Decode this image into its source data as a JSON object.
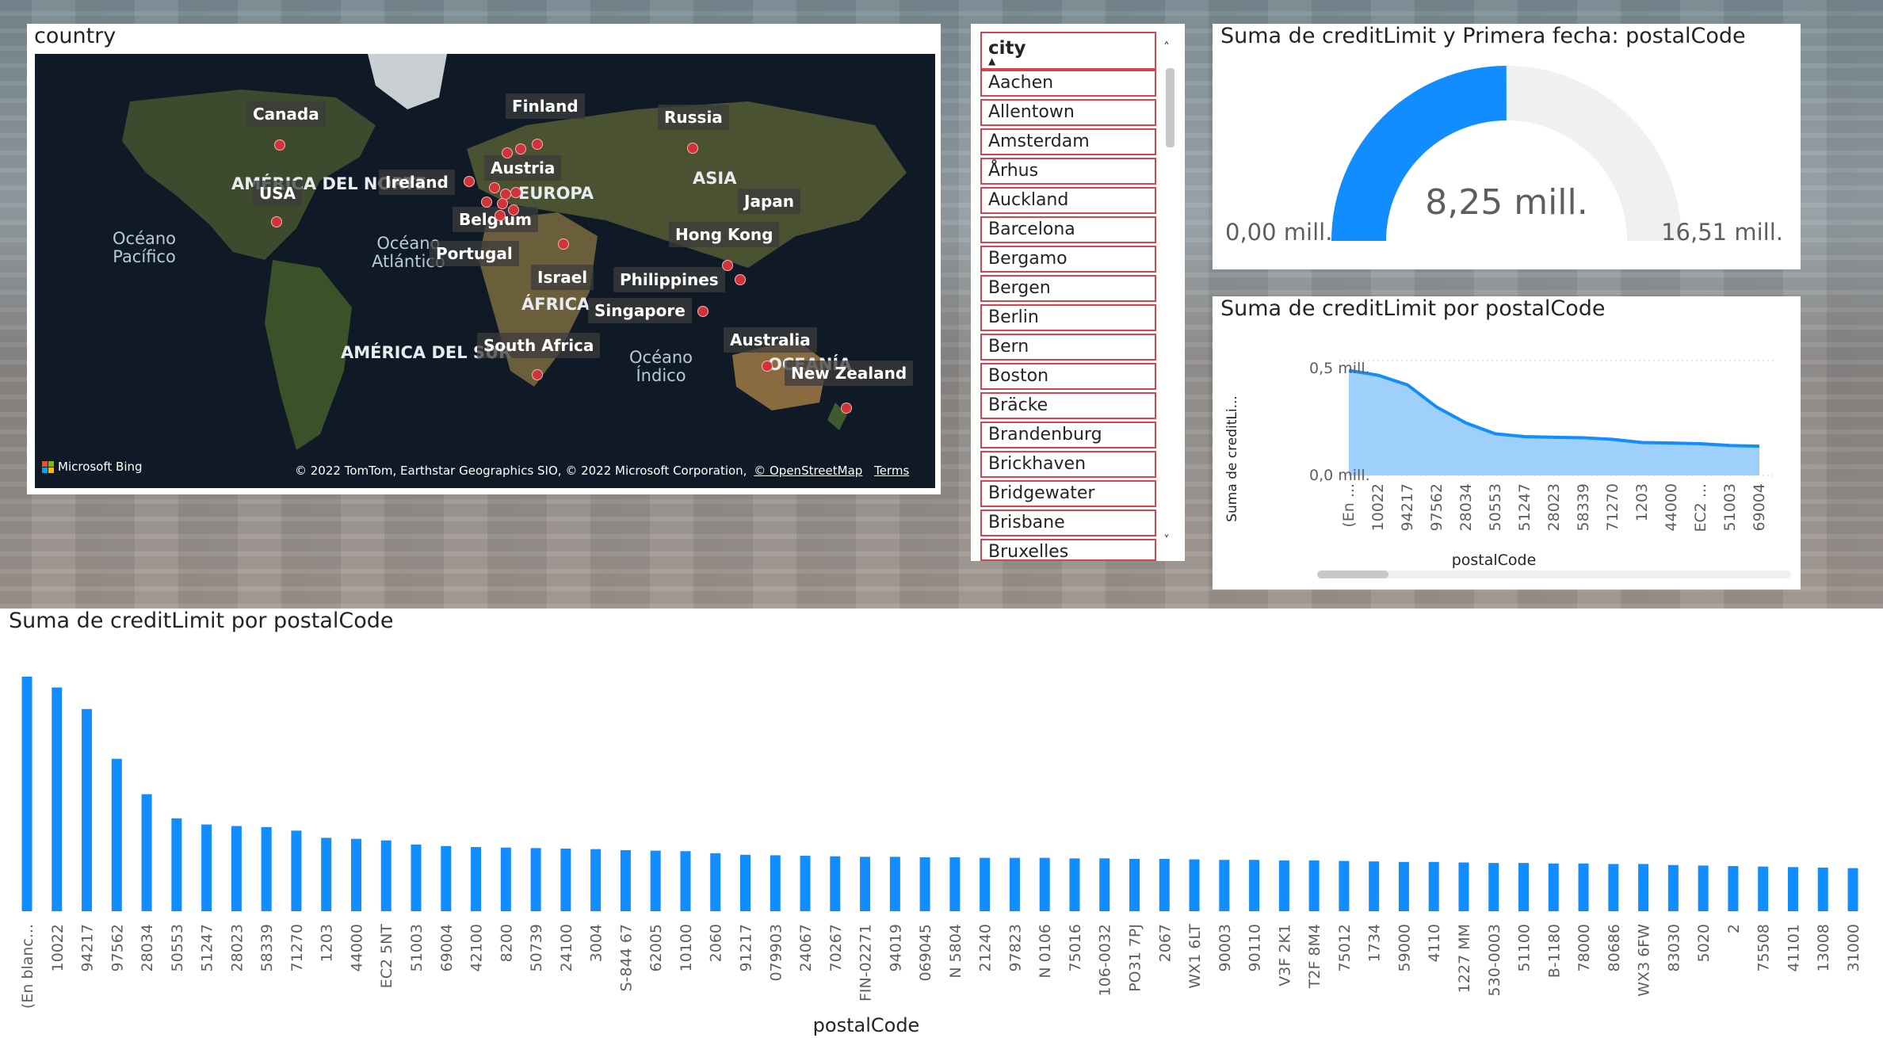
{
  "map": {
    "title": "country",
    "ocean_labels": [
      {
        "id": "pacific",
        "text": "Océano\nPacífico"
      },
      {
        "id": "atlantic",
        "text": "Océano\nAtlántico"
      },
      {
        "id": "indian",
        "text": "Océano\nÍndico"
      }
    ],
    "region_labels": [
      "AMÉRICA DEL NORTE",
      "EUROPA",
      "ASIA",
      "ÁFRICA",
      "AMÉRICA DEL SUR",
      "OCEANÍA"
    ],
    "countries": [
      "Canada",
      "USA",
      "Finland",
      "Russia",
      "Ireland",
      "Austria",
      "Belgium",
      "Portugal",
      "Japan",
      "Hong Kong",
      "Israel",
      "Philippines",
      "Singapore",
      "South Africa",
      "Australia",
      "New Zealand"
    ],
    "bing_logo": "Microsoft Bing",
    "attribution": "© 2022 TomTom, Earthstar Geographics SIO, © 2022 Microsoft Corporation,",
    "osm_link": "© OpenStreetMap",
    "terms_link": "Terms"
  },
  "slicer": {
    "header": "city",
    "items": [
      "Aachen",
      "Allentown",
      "Amsterdam",
      "Århus",
      "Auckland",
      "Barcelona",
      "Bergamo",
      "Bergen",
      "Berlin",
      "Bern",
      "Boston",
      "Bräcke",
      "Brandenburg",
      "Brickhaven",
      "Bridgewater",
      "Brisbane",
      "Bruxelles"
    ]
  },
  "gauge": {
    "title": "Suma de creditLimit y Primera fecha: postalCode",
    "value_label": "8,25 mill.",
    "min_label": "0,00 mill.",
    "max_label": "16,51 mill.",
    "value": 8.25,
    "min": 0,
    "max": 16.51,
    "colors": {
      "fill": "#118dff",
      "track": "#f0f0f0"
    }
  },
  "line_chart": {
    "title": "Suma de creditLimit por postalCode",
    "ylabel": "Suma de creditLi...",
    "xlabel": "postalCode",
    "yticks": [
      "0,5 mill.",
      "0,0 mill."
    ],
    "colors": {
      "line": "#118dff",
      "area": "#9fd0fb"
    }
  },
  "bar_chart": {
    "title": "Suma de creditLimit por postalCode",
    "xlabel": "postalCode",
    "color": "#118dff"
  },
  "chart_data": [
    {
      "type": "area",
      "title": "Suma de creditLimit por postalCode",
      "xlabel": "postalCode",
      "ylabel": "Suma de creditLi...",
      "categories": [
        "(En ...",
        "10022",
        "94217",
        "97562",
        "28034",
        "50553",
        "51247",
        "28023",
        "58339",
        "71270",
        "1203",
        "44000",
        "EC2 ...",
        "51003",
        "69004"
      ],
      "values": [
        0.457,
        0.436,
        0.394,
        0.297,
        0.228,
        0.181,
        0.169,
        0.166,
        0.164,
        0.157,
        0.143,
        0.141,
        0.138,
        0.13,
        0.127
      ],
      "ylim": [
        0,
        0.5
      ],
      "unit": "mill."
    },
    {
      "type": "bar",
      "title": "Suma de creditLimit por postalCode",
      "xlabel": "postalCode",
      "categories": [
        "(En blanc...",
        "10022",
        "94217",
        "97562",
        "28034",
        "50553",
        "51247",
        "28023",
        "58339",
        "71270",
        "1203",
        "44000",
        "EC2 5NT",
        "51003",
        "69004",
        "42100",
        "8200",
        "50739",
        "24100",
        "3004",
        "S-844 67",
        "62005",
        "10100",
        "2060",
        "91217",
        "079903",
        "24067",
        "70267",
        "FIN-02271",
        "94019",
        "069045",
        "N 5804",
        "21240",
        "97823",
        "N 0106",
        "75016",
        "106-0032",
        "PO31 7PJ",
        "2067",
        "WX1 6LT",
        "90003",
        "90110",
        "V3F 2K1",
        "T2F 8M4",
        "75012",
        "1734",
        "59000",
        "4110",
        "1227 MM",
        "530-0003",
        "51100",
        "B-1180",
        "78000",
        "80686",
        "WX3 6FW",
        "83030",
        "5020",
        "2",
        "75508",
        "41101",
        "13008",
        "31000"
      ],
      "values": [
        0.457,
        0.436,
        0.394,
        0.297,
        0.228,
        0.181,
        0.169,
        0.166,
        0.164,
        0.157,
        0.143,
        0.141,
        0.138,
        0.13,
        0.127,
        0.125,
        0.124,
        0.123,
        0.122,
        0.121,
        0.119,
        0.118,
        0.117,
        0.113,
        0.11,
        0.109,
        0.108,
        0.107,
        0.106,
        0.106,
        0.105,
        0.105,
        0.104,
        0.104,
        0.104,
        0.103,
        0.103,
        0.102,
        0.102,
        0.101,
        0.1,
        0.1,
        0.099,
        0.099,
        0.098,
        0.097,
        0.096,
        0.096,
        0.095,
        0.094,
        0.094,
        0.093,
        0.093,
        0.092,
        0.092,
        0.09,
        0.089,
        0.088,
        0.087,
        0.086,
        0.085,
        0.084
      ],
      "unit": "mill."
    }
  ]
}
